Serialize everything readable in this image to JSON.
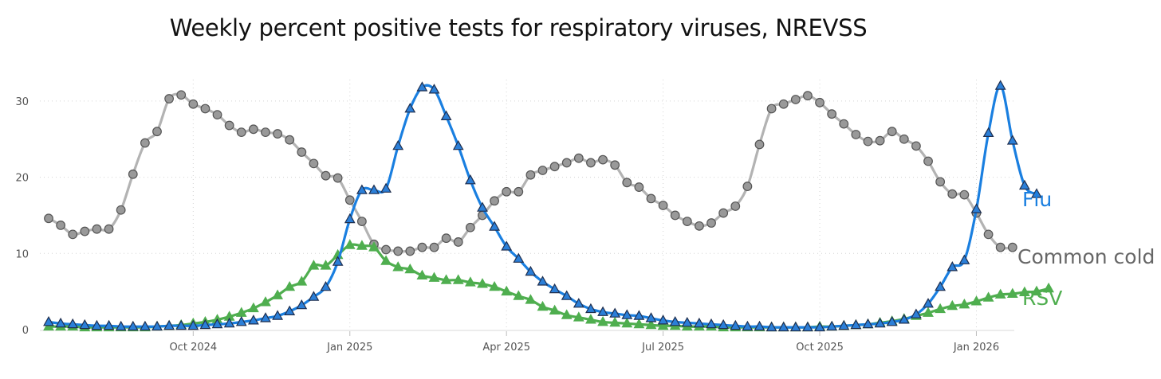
{
  "chart_data": {
    "type": "line",
    "title": "Weekly percent positive tests for respiratory viruses, NREVSS",
    "xlabel": "",
    "ylabel": "",
    "ylim": [
      0,
      34
    ],
    "y_ticks": [
      0,
      10,
      20,
      30
    ],
    "x_ticks": [
      {
        "week": 12,
        "label": "Oct 2024"
      },
      {
        "week": 25,
        "label": "Jan 2025"
      },
      {
        "week": 38,
        "label": "Apr 2025"
      },
      {
        "week": 51,
        "label": "Jul 2025"
      },
      {
        "week": 64,
        "label": "Oct 2025"
      },
      {
        "week": 77,
        "label": "Jan 2026"
      }
    ],
    "grid": true,
    "legend": "direct labels at right end of each line",
    "series": [
      {
        "name": "Flu",
        "color": "#1a7fe0",
        "marker": "triangle",
        "marker_fill": "#2b7fd8",
        "values": [
          1.0,
          0.8,
          0.7,
          0.6,
          0.5,
          0.5,
          0.4,
          0.4,
          0.4,
          0.4,
          0.5,
          0.5,
          0.5,
          0.6,
          0.7,
          0.8,
          1.0,
          1.2,
          1.5,
          1.8,
          2.4,
          3.2,
          4.3,
          5.6,
          8.9,
          14.5,
          18.3,
          18.3,
          18.5,
          24.1,
          29.0,
          31.8,
          31.5,
          28.0,
          24.1,
          19.6,
          16.0,
          13.5,
          10.9,
          9.3,
          7.6,
          6.3,
          5.3,
          4.4,
          3.4,
          2.7,
          2.3,
          2.1,
          1.9,
          1.8,
          1.5,
          1.2,
          1.0,
          0.9,
          0.8,
          0.7,
          0.6,
          0.5,
          0.4,
          0.4,
          0.3,
          0.3,
          0.3,
          0.3,
          0.3,
          0.4,
          0.5,
          0.6,
          0.7,
          0.8,
          1.0,
          1.3,
          2.0,
          3.4,
          5.6,
          8.2,
          9.1,
          15.8,
          25.8,
          32.0,
          24.8,
          18.9,
          17.8
        ]
      },
      {
        "name": "Common cold",
        "color": "#b3b3b3",
        "marker": "circle",
        "marker_fill": "#999999",
        "values": [
          14.6,
          13.7,
          12.5,
          12.9,
          13.2,
          13.2,
          15.7,
          20.4,
          24.5,
          26.0,
          30.3,
          30.8,
          29.6,
          29.0,
          28.2,
          26.8,
          25.9,
          26.3,
          25.9,
          25.7,
          24.9,
          23.3,
          21.8,
          20.2,
          19.9,
          17.0,
          14.2,
          11.2,
          10.5,
          10.3,
          10.3,
          10.8,
          10.8,
          12.0,
          11.5,
          13.4,
          15.0,
          16.9,
          18.1,
          18.1,
          20.3,
          20.9,
          21.4,
          21.9,
          22.5,
          21.9,
          22.3,
          21.6,
          19.3,
          18.7,
          17.2,
          16.3,
          15.0,
          14.2,
          13.6,
          14.0,
          15.3,
          16.2,
          18.8,
          24.3,
          29.0,
          29.6,
          30.2,
          30.7,
          29.8,
          28.3,
          27.0,
          25.6,
          24.7,
          24.8,
          26.0,
          25.0,
          24.1,
          22.1,
          19.4,
          17.8,
          17.7,
          15.3,
          12.5,
          10.8,
          10.8
        ]
      },
      {
        "name": "RSV",
        "color": "#4fae4f",
        "marker": "triangle",
        "marker_fill": "#4fae4f",
        "values": [
          0.4,
          0.4,
          0.4,
          0.3,
          0.3,
          0.3,
          0.3,
          0.3,
          0.3,
          0.4,
          0.5,
          0.6,
          0.8,
          1.0,
          1.3,
          1.7,
          2.2,
          2.8,
          3.6,
          4.5,
          5.6,
          6.3,
          8.4,
          8.4,
          9.8,
          11.1,
          11.0,
          10.8,
          9.0,
          8.2,
          7.9,
          7.1,
          6.8,
          6.5,
          6.5,
          6.2,
          6.0,
          5.6,
          5.0,
          4.4,
          3.9,
          3.0,
          2.5,
          1.9,
          1.6,
          1.3,
          1.0,
          0.9,
          0.8,
          0.7,
          0.6,
          0.5,
          0.5,
          0.4,
          0.4,
          0.4,
          0.3,
          0.3,
          0.3,
          0.3,
          0.3,
          0.3,
          0.3,
          0.3,
          0.4,
          0.4,
          0.5,
          0.6,
          0.7,
          0.9,
          1.1,
          1.4,
          1.8,
          2.2,
          2.7,
          3.1,
          3.3,
          3.7,
          4.2,
          4.6,
          4.7,
          4.9,
          5.0,
          5.4
        ]
      }
    ]
  }
}
